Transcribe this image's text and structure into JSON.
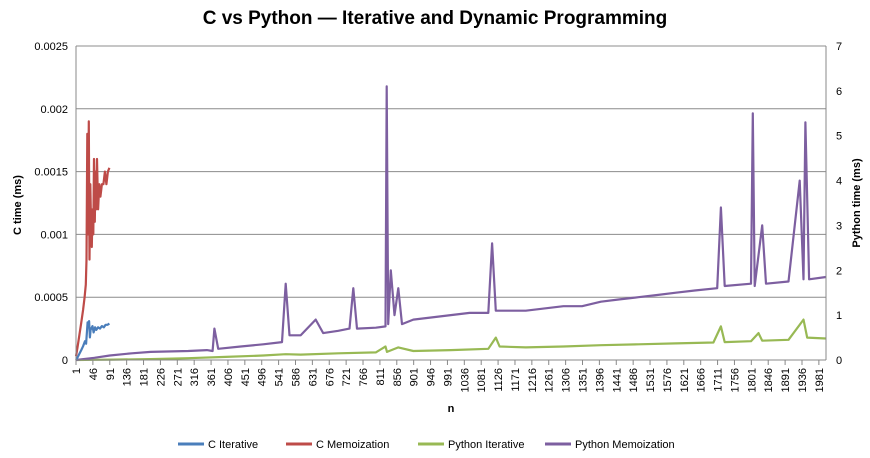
{
  "chart_data": {
    "type": "line",
    "title": "C vs Python — Iterative and Dynamic Programming",
    "xlabel": "n",
    "ylabel_left": "C time (ms)",
    "ylabel_right": "Python time (ms)",
    "ylim_left": [
      0,
      0.0025
    ],
    "ylim_right": [
      0,
      7
    ],
    "xlim": [
      1,
      2000
    ],
    "yticks_left": [
      "0",
      "0.0005",
      "0.001",
      "0.0015",
      "0.002",
      "0.0025"
    ],
    "yticks_right": [
      "0",
      "1",
      "2",
      "3",
      "4",
      "5",
      "6",
      "7"
    ],
    "xticks": [
      "1",
      "46",
      "91",
      "136",
      "181",
      "226",
      "271",
      "316",
      "361",
      "406",
      "451",
      "496",
      "541",
      "586",
      "631",
      "676",
      "721",
      "766",
      "811",
      "856",
      "901",
      "946",
      "991",
      "1036",
      "1081",
      "1126",
      "1171",
      "1216",
      "1261",
      "1306",
      "1351",
      "1396",
      "1441",
      "1486",
      "1531",
      "1576",
      "1621",
      "1666",
      "1711",
      "1756",
      "1801",
      "1846",
      "1891",
      "1936",
      "1981"
    ],
    "grid": true,
    "legend_position": "bottom",
    "series": [
      {
        "name": "C Iterative",
        "axis": "left",
        "color": "#4a7ebb",
        "points": [
          [
            1,
            0
          ],
          [
            5,
            2e-05
          ],
          [
            10,
            5e-05
          ],
          [
            15,
            8e-05
          ],
          [
            20,
            0.00011
          ],
          [
            25,
            0.00015
          ],
          [
            28,
            0.00013
          ],
          [
            30,
            0.00022
          ],
          [
            32,
            0.0003
          ],
          [
            34,
            0.00026
          ],
          [
            36,
            0.00031
          ],
          [
            38,
            0.00018
          ],
          [
            40,
            0.00024
          ],
          [
            45,
            0.00027
          ],
          [
            48,
            0.00022
          ],
          [
            52,
            0.00026
          ],
          [
            55,
            0.00024
          ],
          [
            60,
            0.00026
          ],
          [
            65,
            0.00025
          ],
          [
            70,
            0.00027
          ],
          [
            75,
            0.00026
          ],
          [
            80,
            0.00028
          ],
          [
            85,
            0.00028
          ],
          [
            90,
            0.00029
          ]
        ]
      },
      {
        "name": "C Memoization",
        "axis": "left",
        "color": "#be4b48",
        "points": [
          [
            1,
            3e-05
          ],
          [
            5,
            0.0001
          ],
          [
            10,
            0.0002
          ],
          [
            15,
            0.0003
          ],
          [
            20,
            0.0004
          ],
          [
            24,
            0.0005
          ],
          [
            27,
            0.0006
          ],
          [
            29,
            0.0008
          ],
          [
            31,
            0.0018
          ],
          [
            33,
            0.001
          ],
          [
            35,
            0.0019
          ],
          [
            37,
            0.0008
          ],
          [
            39,
            0.0014
          ],
          [
            41,
            0.0011
          ],
          [
            43,
            0.0009
          ],
          [
            45,
            0.0012
          ],
          [
            47,
            0.001
          ],
          [
            49,
            0.0016
          ],
          [
            51,
            0.0011
          ],
          [
            53,
            0.0015
          ],
          [
            55,
            0.0012
          ],
          [
            57,
            0.0016
          ],
          [
            60,
            0.0012
          ],
          [
            63,
            0.0014
          ],
          [
            66,
            0.0013
          ],
          [
            70,
            0.0014
          ],
          [
            74,
            0.0014
          ],
          [
            78,
            0.0015
          ],
          [
            82,
            0.0014
          ],
          [
            86,
            0.0015
          ],
          [
            90,
            0.00153
          ]
        ]
      },
      {
        "name": "Python Iterative",
        "axis": "right",
        "color": "#98b954",
        "points": [
          [
            1,
            0
          ],
          [
            50,
            0.005
          ],
          [
            100,
            0.01
          ],
          [
            200,
            0.02
          ],
          [
            300,
            0.04
          ],
          [
            400,
            0.07
          ],
          [
            500,
            0.1
          ],
          [
            560,
            0.13
          ],
          [
            600,
            0.12
          ],
          [
            700,
            0.15
          ],
          [
            800,
            0.17
          ],
          [
            826,
            0.3
          ],
          [
            830,
            0.18
          ],
          [
            860,
            0.28
          ],
          [
            900,
            0.2
          ],
          [
            1000,
            0.22
          ],
          [
            1100,
            0.25
          ],
          [
            1120,
            0.5
          ],
          [
            1130,
            0.3
          ],
          [
            1200,
            0.28
          ],
          [
            1300,
            0.3
          ],
          [
            1400,
            0.33
          ],
          [
            1500,
            0.35
          ],
          [
            1600,
            0.37
          ],
          [
            1700,
            0.39
          ],
          [
            1720,
            0.75
          ],
          [
            1730,
            0.4
          ],
          [
            1800,
            0.42
          ],
          [
            1820,
            0.6
          ],
          [
            1830,
            0.43
          ],
          [
            1900,
            0.45
          ],
          [
            1940,
            0.9
          ],
          [
            1950,
            0.5
          ],
          [
            2000,
            0.48
          ]
        ]
      },
      {
        "name": "Python Memoization",
        "axis": "right",
        "color": "#7d5fa0",
        "points": [
          [
            1,
            0
          ],
          [
            50,
            0.05
          ],
          [
            91,
            0.1
          ],
          [
            150,
            0.15
          ],
          [
            200,
            0.18
          ],
          [
            300,
            0.2
          ],
          [
            350,
            0.22
          ],
          [
            365,
            0.2
          ],
          [
            370,
            0.7
          ],
          [
            380,
            0.25
          ],
          [
            440,
            0.3
          ],
          [
            500,
            0.35
          ],
          [
            550,
            0.4
          ],
          [
            560,
            1.7
          ],
          [
            570,
            0.55
          ],
          [
            600,
            0.55
          ],
          [
            640,
            0.9
          ],
          [
            660,
            0.6
          ],
          [
            700,
            0.65
          ],
          [
            730,
            0.7
          ],
          [
            740,
            1.6
          ],
          [
            750,
            0.7
          ],
          [
            800,
            0.72
          ],
          [
            826,
            0.75
          ],
          [
            829,
            6.1
          ],
          [
            833,
            0.8
          ],
          [
            840,
            2.0
          ],
          [
            850,
            1.0
          ],
          [
            860,
            1.6
          ],
          [
            870,
            0.8
          ],
          [
            900,
            0.9
          ],
          [
            950,
            0.95
          ],
          [
            1000,
            1.0
          ],
          [
            1050,
            1.05
          ],
          [
            1100,
            1.05
          ],
          [
            1110,
            2.6
          ],
          [
            1120,
            1.1
          ],
          [
            1200,
            1.1
          ],
          [
            1300,
            1.2
          ],
          [
            1350,
            1.2
          ],
          [
            1400,
            1.3
          ],
          [
            1450,
            1.35
          ],
          [
            1500,
            1.4
          ],
          [
            1550,
            1.45
          ],
          [
            1600,
            1.5
          ],
          [
            1650,
            1.55
          ],
          [
            1710,
            1.6
          ],
          [
            1720,
            3.4
          ],
          [
            1730,
            1.65
          ],
          [
            1800,
            1.7
          ],
          [
            1805,
            5.5
          ],
          [
            1810,
            1.65
          ],
          [
            1830,
            3.0
          ],
          [
            1840,
            1.7
          ],
          [
            1900,
            1.75
          ],
          [
            1930,
            4.0
          ],
          [
            1940,
            1.8
          ],
          [
            1945,
            5.3
          ],
          [
            1955,
            1.8
          ],
          [
            2000,
            1.85
          ]
        ]
      }
    ]
  }
}
